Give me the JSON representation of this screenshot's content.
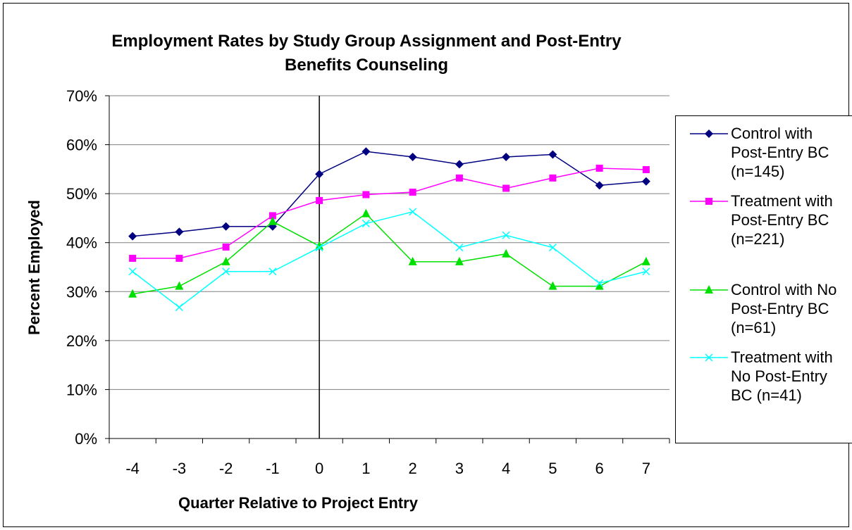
{
  "chart_data": {
    "type": "line",
    "title": "Employment Rates by Study Group Assignment and Post-Entry Benefits Counseling",
    "x_label": "Quarter Relative to Project Entry",
    "y_label": "Percent Employed",
    "x": [
      -4,
      -3,
      -2,
      -1,
      0,
      1,
      2,
      3,
      4,
      5,
      6,
      7
    ],
    "xlim": [
      -4.5,
      7.5
    ],
    "ylim": [
      0,
      70
    ],
    "yticks": [
      {
        "value": 0,
        "label": "0%"
      },
      {
        "value": 10,
        "label": "10%"
      },
      {
        "value": 20,
        "label": "20%"
      },
      {
        "value": 30,
        "label": "30%"
      },
      {
        "value": 40,
        "label": "40%"
      },
      {
        "value": 50,
        "label": "50%"
      },
      {
        "value": 60,
        "label": "60%"
      },
      {
        "value": 70,
        "label": "70%"
      }
    ],
    "grid": true,
    "reference_line": {
      "x": 0
    },
    "legend": "right",
    "series": [
      {
        "name": "Control with Post-Entry BC (n=145)",
        "color": "#000080",
        "marker": "diamond",
        "values": [
          41.3,
          42.2,
          43.3,
          43.3,
          54.0,
          58.6,
          57.5,
          56.0,
          57.5,
          58.0,
          51.7,
          52.5
        ]
      },
      {
        "name": "Treatment with Post-Entry BC (n=221)",
        "color": "#ff00ff",
        "marker": "square",
        "values": [
          36.8,
          36.8,
          39.1,
          45.5,
          48.6,
          49.8,
          50.3,
          53.2,
          51.1,
          53.2,
          55.2,
          54.9
        ]
      },
      {
        "name": "Control with No Post-Entry BC (n=61)",
        "color": "#00e000",
        "marker": "triangle",
        "values": [
          29.5,
          31.1,
          36.1,
          44.3,
          39.3,
          45.9,
          36.1,
          36.1,
          37.7,
          31.1,
          31.1,
          36.1
        ]
      },
      {
        "name": "Treatment with No Post-Entry BC (n=41)",
        "color": "#00ffff",
        "marker": "x",
        "values": [
          34.1,
          26.8,
          34.1,
          34.1,
          39.0,
          43.9,
          46.3,
          39.0,
          41.5,
          39.0,
          31.7,
          34.1
        ]
      }
    ]
  }
}
